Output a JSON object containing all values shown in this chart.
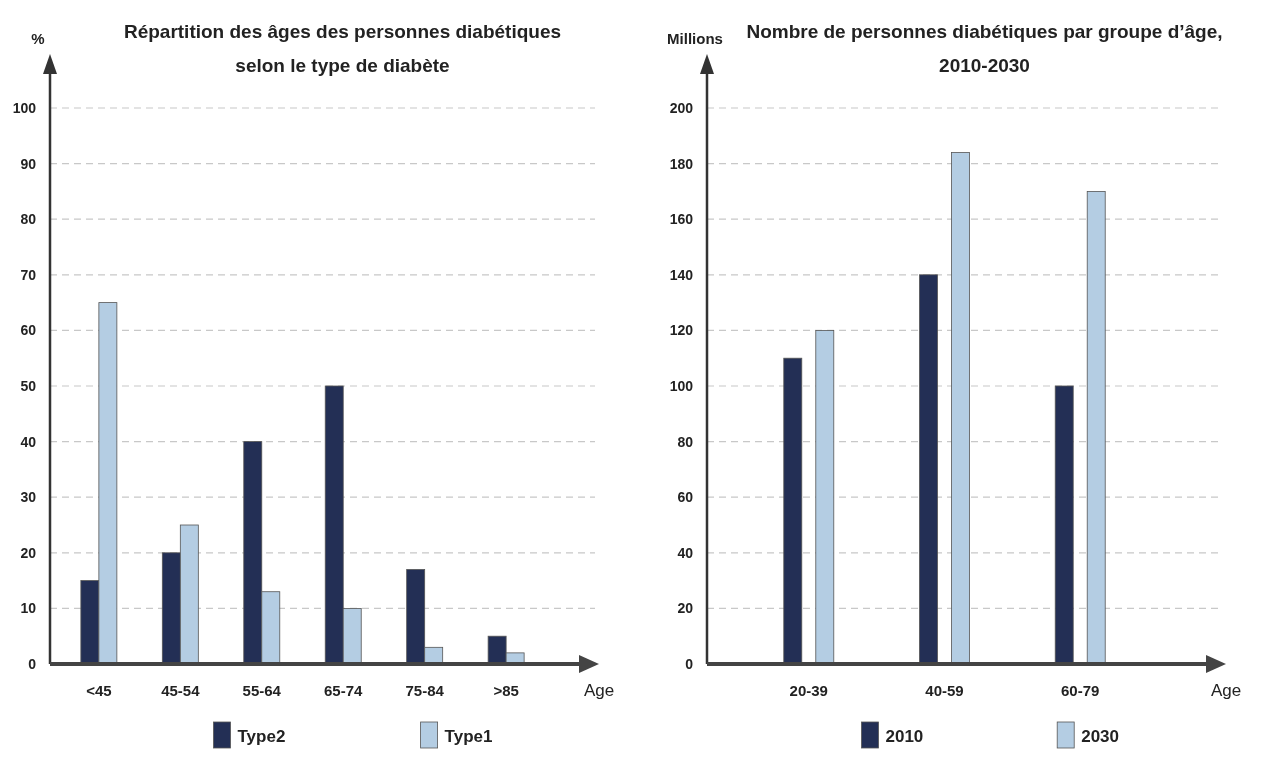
{
  "chart_data": [
    {
      "type": "bar",
      "title": "Répartition des âges des personnes diabétiques selon le type de diabète",
      "xlabel": "Age",
      "ylabel": "%",
      "categories": [
        "<45",
        "45-54",
        "55-64",
        "65-74",
        "75-84",
        ">85"
      ],
      "series": [
        {
          "name": "Type2",
          "color": "#232f55",
          "values": [
            15,
            20,
            40,
            50,
            17,
            5
          ]
        },
        {
          "name": "Type1",
          "color": "#b4cde3",
          "values": [
            65,
            25,
            13,
            10,
            3,
            2
          ]
        }
      ],
      "ylim": [
        0,
        100
      ],
      "yticks": [
        0,
        10,
        20,
        30,
        40,
        50,
        60,
        70,
        80,
        90,
        100
      ],
      "grid": "y",
      "legend": "bottom"
    },
    {
      "type": "bar",
      "title": "Nombre de personnes diabétiques par groupe d’âge, 2010-2030",
      "xlabel": "Age",
      "ylabel": "Millions",
      "categories": [
        "20-39",
        "40-59",
        "60-79"
      ],
      "series": [
        {
          "name": "2010",
          "color": "#232f55",
          "values": [
            110,
            140,
            100
          ]
        },
        {
          "name": "2030",
          "color": "#b4cde3",
          "values": [
            120,
            184,
            170
          ]
        }
      ],
      "ylim": [
        0,
        200
      ],
      "yticks": [
        0,
        20,
        40,
        60,
        80,
        100,
        120,
        140,
        160,
        180,
        200
      ],
      "grid": "y",
      "legend": "bottom"
    }
  ]
}
